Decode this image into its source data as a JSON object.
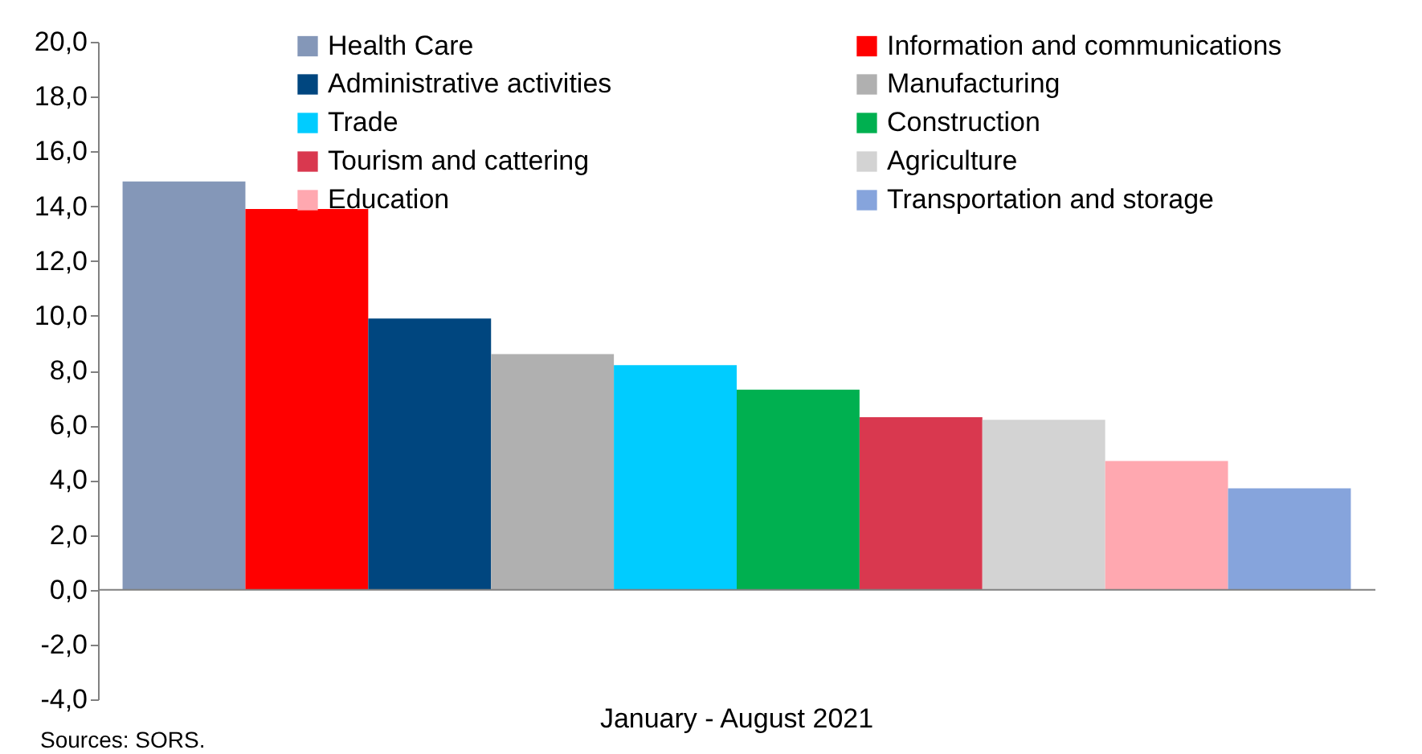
{
  "chart_data": {
    "type": "bar",
    "categories": [
      "January - August 2021"
    ],
    "series": [
      {
        "name": "Health Care",
        "color": "#8497b8",
        "values": [
          14.9
        ]
      },
      {
        "name": "Information and communications",
        "color": "#ff0000",
        "values": [
          13.9
        ]
      },
      {
        "name": "Administrative activities",
        "color": "#00467f",
        "values": [
          9.9
        ]
      },
      {
        "name": "Manufacturing",
        "color": "#b0b0b0",
        "values": [
          8.6
        ]
      },
      {
        "name": "Trade",
        "color": "#00ccff",
        "values": [
          8.2
        ]
      },
      {
        "name": "Construction",
        "color": "#00b050",
        "values": [
          7.3
        ]
      },
      {
        "name": "Tourism and cattering",
        "color": "#d9384f",
        "values": [
          6.3
        ]
      },
      {
        "name": "Agriculture",
        "color": "#d3d3d3",
        "values": [
          6.2
        ]
      },
      {
        "name": "Education",
        "color": "#ffa8b0",
        "values": [
          4.7
        ]
      },
      {
        "name": "Transportation and storage",
        "color": "#86a4dc",
        "values": [
          3.7
        ]
      }
    ],
    "ylim": [
      -4,
      20
    ],
    "yticks": [
      {
        "value": -4,
        "label": "-4,0"
      },
      {
        "value": -2,
        "label": "-2,0"
      },
      {
        "value": 0,
        "label": "0,0"
      },
      {
        "value": 2,
        "label": "2,0"
      },
      {
        "value": 4,
        "label": "4,0"
      },
      {
        "value": 6,
        "label": "6,0"
      },
      {
        "value": 8,
        "label": "8,0"
      },
      {
        "value": 10,
        "label": "10,0"
      },
      {
        "value": 12,
        "label": "12,0"
      },
      {
        "value": 14,
        "label": "14,0"
      },
      {
        "value": 16,
        "label": "16,0"
      },
      {
        "value": 18,
        "label": "18,0"
      },
      {
        "value": 20,
        "label": "20,0"
      }
    ],
    "ref_lines": [
      {
        "axis": "y",
        "value": 0,
        "color": "#808080"
      }
    ],
    "grid": false,
    "legend": "top",
    "annotations": [
      "Sources: SORS."
    ]
  }
}
